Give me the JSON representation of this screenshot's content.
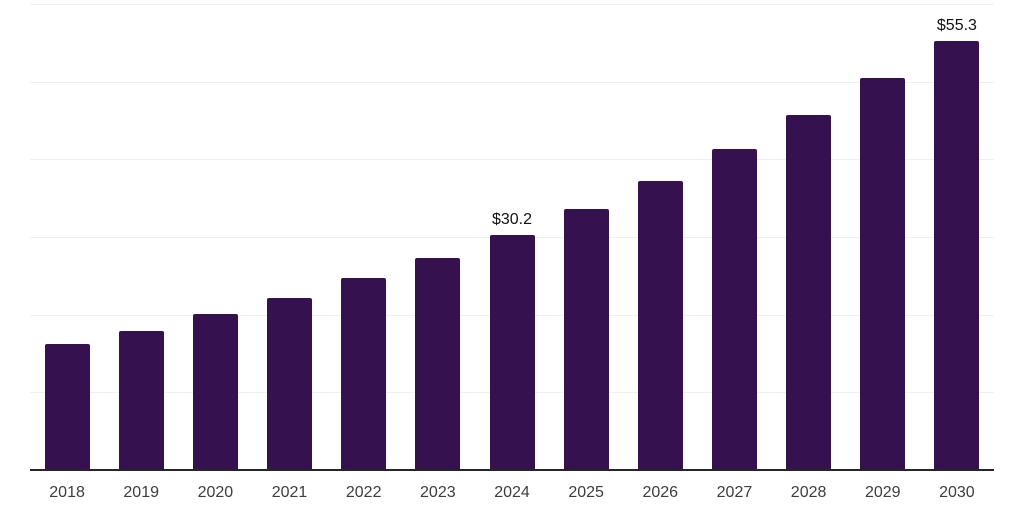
{
  "chart_data": {
    "type": "bar",
    "title": "",
    "xlabel": "",
    "ylabel": "",
    "categories": [
      "2018",
      "2019",
      "2020",
      "2021",
      "2022",
      "2023",
      "2024",
      "2025",
      "2026",
      "2027",
      "2028",
      "2029",
      "2030"
    ],
    "values": [
      16.2,
      17.9,
      20.1,
      22.2,
      24.7,
      27.3,
      30.2,
      33.6,
      37.2,
      41.3,
      45.7,
      50.5,
      55.3
    ],
    "data_labels": [
      "",
      "",
      "",
      "",
      "",
      "",
      "$30.2",
      "",
      "",
      "",
      "",
      "",
      "$55.3"
    ],
    "ylim": [
      0,
      60
    ],
    "grid_interval": 10,
    "grid": "horizontal",
    "legend_position": "none",
    "y_tick_labels_shown": false,
    "style": {
      "bar_color": "#351150",
      "gridline_color": "#f0f0f0",
      "axis_line_color": "#262626",
      "tick_label_color": "#3d3d3d",
      "data_label_color": "#111111",
      "background_color": "#ffffff"
    }
  }
}
